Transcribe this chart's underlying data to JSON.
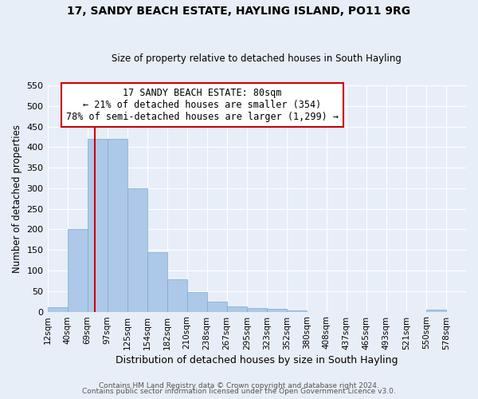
{
  "title": "17, SANDY BEACH ESTATE, HAYLING ISLAND, PO11 9RG",
  "subtitle": "Size of property relative to detached houses in South Hayling",
  "xlabel": "Distribution of detached houses by size in South Hayling",
  "ylabel": "Number of detached properties",
  "bin_labels": [
    "12sqm",
    "40sqm",
    "69sqm",
    "97sqm",
    "125sqm",
    "154sqm",
    "182sqm",
    "210sqm",
    "238sqm",
    "267sqm",
    "295sqm",
    "323sqm",
    "352sqm",
    "380sqm",
    "408sqm",
    "437sqm",
    "465sqm",
    "493sqm",
    "521sqm",
    "550sqm",
    "578sqm"
  ],
  "bar_heights": [
    10,
    200,
    420,
    420,
    300,
    145,
    78,
    48,
    25,
    13,
    9,
    7,
    4,
    0,
    0,
    0,
    0,
    0,
    0,
    5,
    0
  ],
  "bar_color": "#adc8e8",
  "bar_edge_color": "#7aabcf",
  "ylim": [
    0,
    550
  ],
  "yticks": [
    0,
    50,
    100,
    150,
    200,
    250,
    300,
    350,
    400,
    450,
    500,
    550
  ],
  "annotation_title": "17 SANDY BEACH ESTATE: 80sqm",
  "annotation_line1": "← 21% of detached houses are smaller (354)",
  "annotation_line2": "78% of semi-detached houses are larger (1,299) →",
  "annotation_box_color": "#ffffff",
  "annotation_border_color": "#cc0000",
  "vline_color": "#cc0000",
  "bg_color": "#e8eef8",
  "grid_color": "#ffffff",
  "footer1": "Contains HM Land Registry data © Crown copyright and database right 2024.",
  "footer2": "Contains public sector information licensed under the Open Government Licence v3.0."
}
